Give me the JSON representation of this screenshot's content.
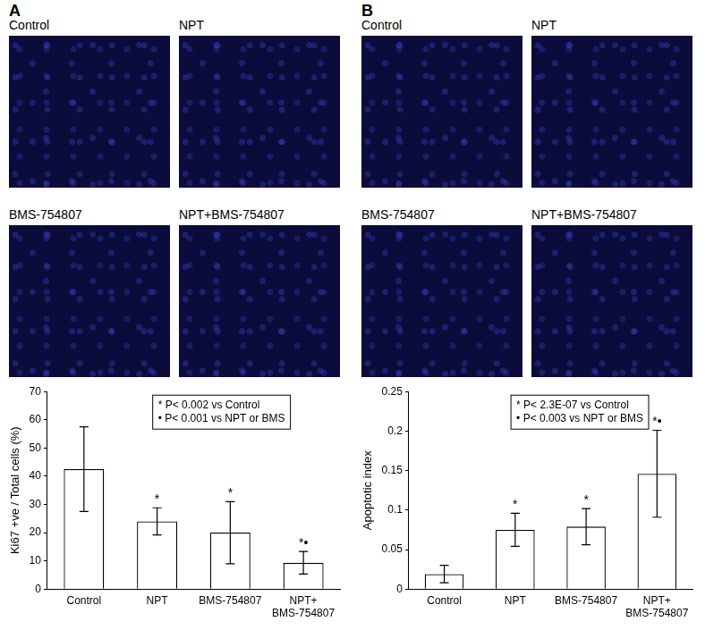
{
  "panels": [
    {
      "label": "A",
      "image_titles": [
        "Control",
        "NPT",
        "BMS-754807",
        "NPT+BMS-754807"
      ]
    },
    {
      "label": "B",
      "image_titles": [
        "Control",
        "NPT",
        "BMS-754807",
        "NPT+BMS-754807"
      ]
    }
  ],
  "chart_data": [
    {
      "type": "bar",
      "categories": [
        "Control",
        "NPT",
        "BMS-754807",
        "NPT+\nBMS-754807"
      ],
      "values": [
        42.5,
        24,
        20,
        9.3
      ],
      "errors": [
        15,
        4.8,
        11,
        4
      ],
      "marks": [
        null,
        "*",
        "*",
        "*•"
      ],
      "annotations": [
        "* P< 0.002 vs Control",
        "• P< 0.001 vs NPT or BMS"
      ],
      "y_label": "Ki67 +ve / Total cells (%)",
      "ylim": [
        0,
        70
      ],
      "yticks": [
        0,
        10,
        20,
        30,
        40,
        50,
        60,
        70
      ],
      "color": "#ffffff",
      "grid": false
    },
    {
      "type": "bar",
      "categories": [
        "Control",
        "NPT",
        "BMS-754807",
        "NPT+\nBMS-754807"
      ],
      "values": [
        0.019,
        0.075,
        0.079,
        0.146
      ],
      "errors": [
        0.011,
        0.021,
        0.023,
        0.055
      ],
      "marks": [
        null,
        "*",
        "*",
        "*•"
      ],
      "annotations": [
        "* P< 2.3E-07 vs Control",
        "• P< 0.003 vs NPT or BMS"
      ],
      "y_label": "Apoptotic index",
      "ylim": [
        0,
        0.25
      ],
      "yticks": [
        0,
        0.05,
        0.1,
        0.15,
        0.2,
        0.25
      ],
      "color": "#ffffff",
      "grid": false
    }
  ]
}
